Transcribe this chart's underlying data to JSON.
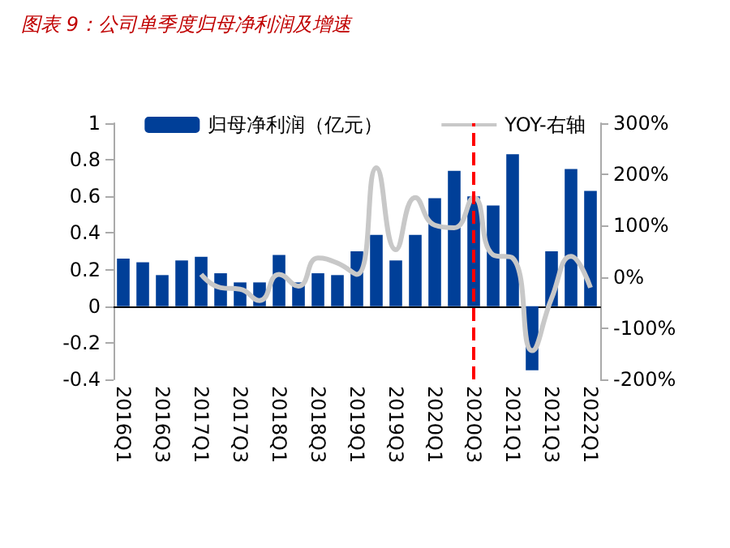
{
  "chart_data": {
    "type": "bar",
    "title": "图表 9：公司单季度归母净利润及增速",
    "categories": [
      "2016Q1",
      null,
      "2016Q3",
      null,
      "2017Q1",
      null,
      "2017Q3",
      null,
      "2018Q1",
      null,
      "2018Q3",
      null,
      "2019Q1",
      null,
      "2019Q3",
      null,
      "2020Q1",
      null,
      "2020Q3",
      null,
      "2021Q1",
      null,
      "2021Q3",
      null,
      "2022Q1"
    ],
    "series": [
      {
        "name": "归母净利润（亿元）",
        "color": "#003f98",
        "values": [
          0.26,
          0.24,
          0.17,
          0.25,
          0.27,
          0.18,
          0.13,
          0.13,
          0.28,
          0.13,
          0.18,
          0.17,
          0.3,
          0.39,
          0.25,
          0.39,
          0.59,
          0.74,
          0.6,
          0.55,
          0.83,
          -0.35,
          0.3,
          0.75,
          0.63
        ]
      },
      {
        "name": "YOY-右轴",
        "type": "line",
        "axis": "y2",
        "color": "#c8c8c8",
        "marker": "none",
        "values": [
          null,
          null,
          null,
          null,
          5,
          -21,
          -24,
          -46,
          5,
          -18,
          37,
          27,
          5,
          213,
          53,
          155,
          101,
          96,
          155,
          43,
          37,
          -144,
          -42,
          40,
          -21
        ]
      }
    ],
    "ylim": [
      -0.4,
      1
    ],
    "yticks": [
      -0.4,
      -0.2,
      0,
      0.2,
      0.4,
      0.6,
      0.8,
      1
    ],
    "y2lim": [
      -200,
      300
    ],
    "y2ticks": [
      {
        "value": -200,
        "label": "-200%"
      },
      {
        "value": -100,
        "label": "-100%"
      },
      {
        "value": 0,
        "label": "0%"
      },
      {
        "value": 100,
        "label": "100%"
      },
      {
        "value": 200,
        "label": "200%"
      },
      {
        "value": 300,
        "label": "300%"
      }
    ],
    "ref_lines": [
      {
        "axis": "x",
        "value": "2020Q3",
        "color": "#ff0000",
        "line_style": "dashed"
      }
    ],
    "grid": false,
    "legend": "top"
  }
}
